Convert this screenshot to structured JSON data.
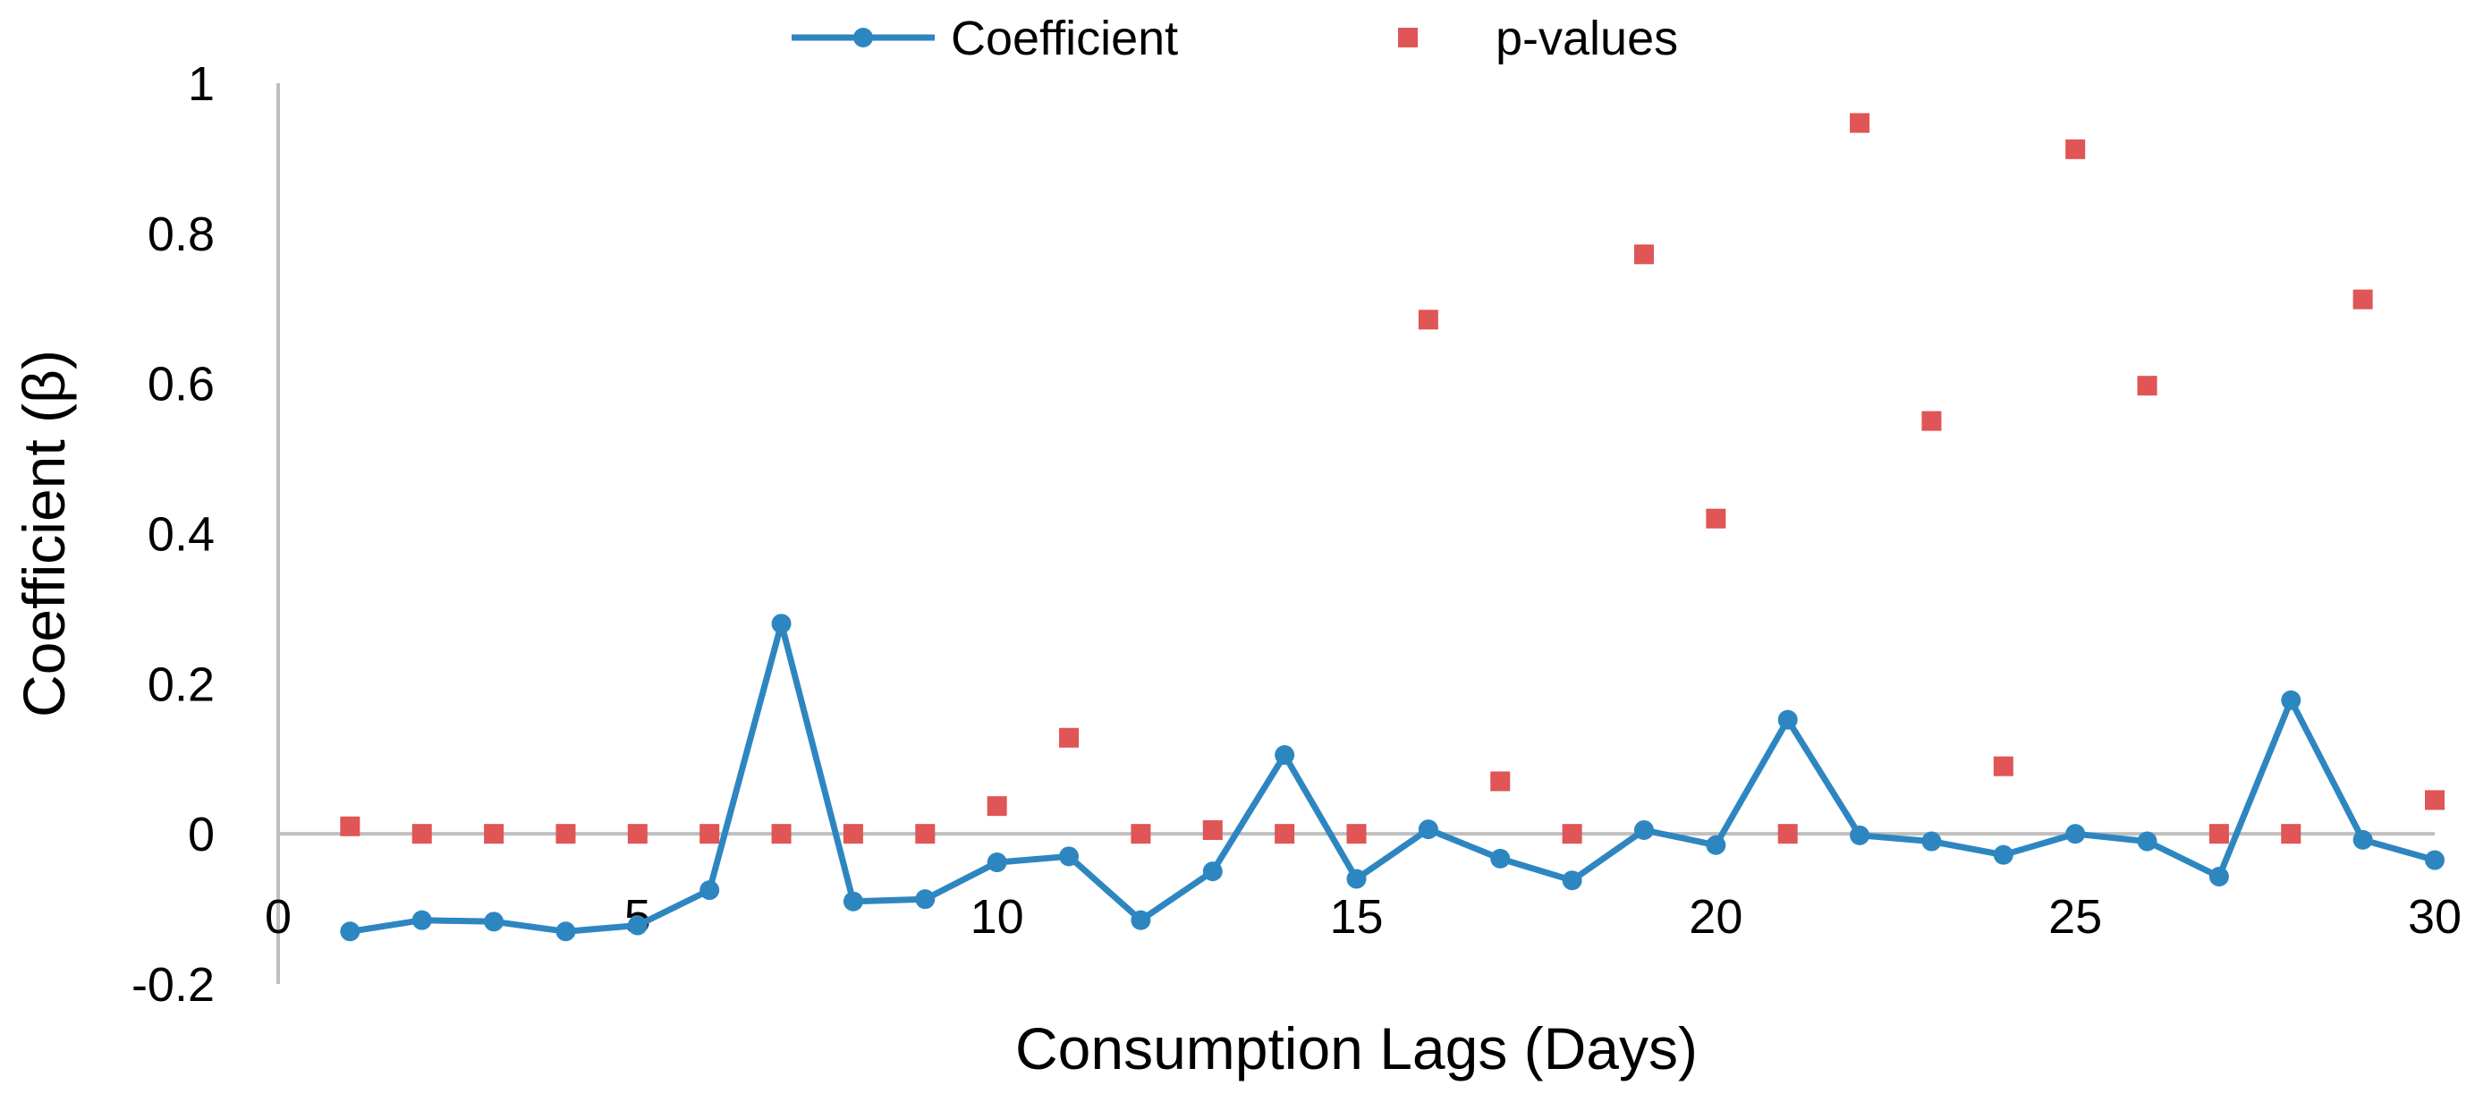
{
  "chart_data": {
    "type": "line",
    "xlabel": "Consumption Lags (Days)",
    "ylabel": "Coefficient (β)",
    "xlim": [
      0,
      30
    ],
    "ylim": [
      -0.2,
      1
    ],
    "x_ticks": [
      0,
      5,
      10,
      15,
      20,
      25,
      30
    ],
    "x_tick_labels": [
      "0",
      "5",
      "10",
      "15",
      "20",
      "25",
      "30"
    ],
    "y_ticks": [
      -0.2,
      0,
      0.2,
      0.4,
      0.6,
      0.8,
      1
    ],
    "y_tick_labels": [
      "-0.2",
      "0",
      "0.2",
      "0.4",
      "0.6",
      "0.8",
      "1"
    ],
    "grid": false,
    "legend_position": "top-center",
    "colors": {
      "coefficient": "#2e86c1",
      "p_values": "#e05555",
      "axis": "#bfbfbf"
    },
    "series": [
      {
        "name": "Coefficient",
        "kind": "line-marker",
        "x": [
          1,
          2,
          3,
          4,
          5,
          6,
          7,
          8,
          9,
          10,
          11,
          12,
          13,
          14,
          15,
          16,
          17,
          18,
          19,
          20,
          21,
          22,
          23,
          24,
          25,
          26,
          27,
          28,
          29,
          30
        ],
        "values": [
          -0.13,
          -0.115,
          -0.117,
          -0.13,
          -0.122,
          -0.075,
          0.28,
          -0.09,
          -0.087,
          -0.038,
          -0.03,
          -0.115,
          -0.05,
          0.105,
          -0.06,
          0.006,
          -0.033,
          -0.062,
          0.005,
          -0.015,
          0.152,
          -0.002,
          -0.01,
          -0.028,
          0.0,
          -0.01,
          -0.057,
          0.178,
          -0.008,
          -0.035
        ]
      },
      {
        "name": "p-values",
        "kind": "scatter-square",
        "x": [
          1,
          2,
          3,
          4,
          5,
          6,
          7,
          8,
          9,
          10,
          11,
          12,
          13,
          14,
          15,
          16,
          17,
          18,
          19,
          20,
          21,
          22,
          23,
          24,
          25,
          26,
          27,
          28,
          29,
          30
        ],
        "values": [
          0.01,
          0.0,
          0.0,
          0.0,
          0.0,
          0.0,
          0.0,
          0.0,
          0.0,
          0.037,
          0.128,
          0.0,
          0.005,
          0.0,
          0.0,
          0.685,
          0.07,
          0.0,
          0.772,
          0.42,
          0.0,
          0.947,
          0.55,
          0.09,
          0.912,
          0.597,
          0.0,
          0.0,
          0.712,
          0.045
        ]
      }
    ]
  }
}
